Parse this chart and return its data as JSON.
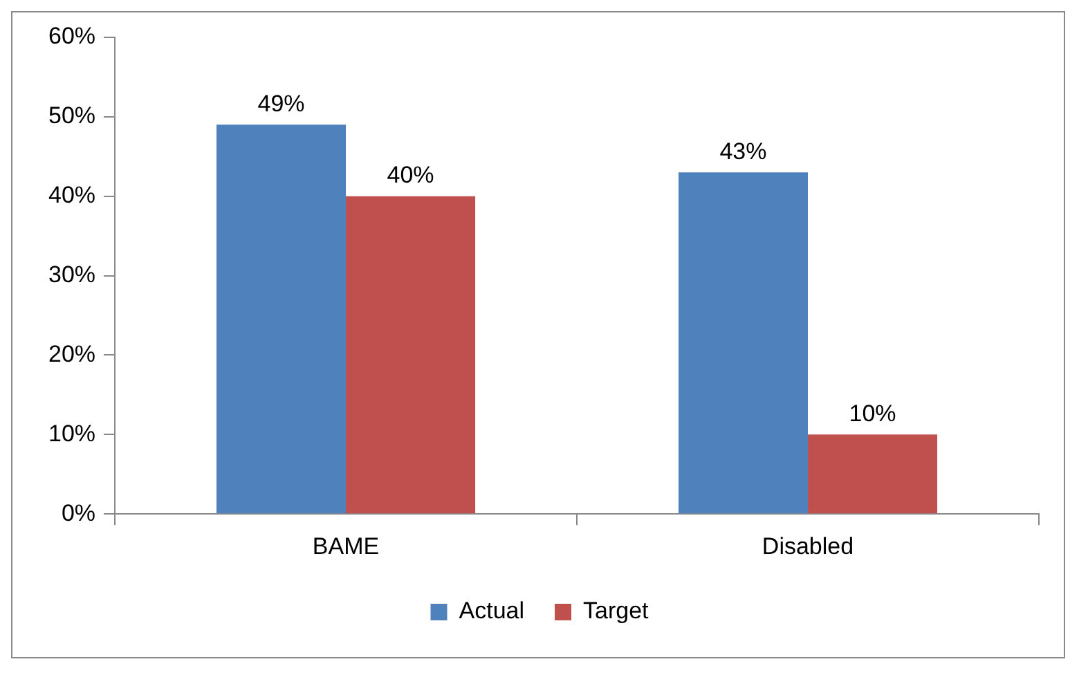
{
  "chart_data": {
    "type": "bar",
    "categories": [
      "BAME",
      "Disabled"
    ],
    "series": [
      {
        "name": "Actual",
        "color": "#4f81bd",
        "values": [
          49,
          43
        ],
        "value_labels": [
          "49%",
          "43%"
        ]
      },
      {
        "name": "Target",
        "color": "#c0504d",
        "values": [
          40,
          10
        ],
        "value_labels": [
          "40%",
          "10%"
        ]
      }
    ],
    "ylim": [
      0,
      60
    ],
    "yticks": [
      {
        "value": 0,
        "label": "0%"
      },
      {
        "value": 10,
        "label": "10%"
      },
      {
        "value": 20,
        "label": "20%"
      },
      {
        "value": 30,
        "label": "30%"
      },
      {
        "value": 40,
        "label": "40%"
      },
      {
        "value": 50,
        "label": "50%"
      },
      {
        "value": 60,
        "label": "60%"
      }
    ],
    "grid": false,
    "legend": "bottom"
  }
}
